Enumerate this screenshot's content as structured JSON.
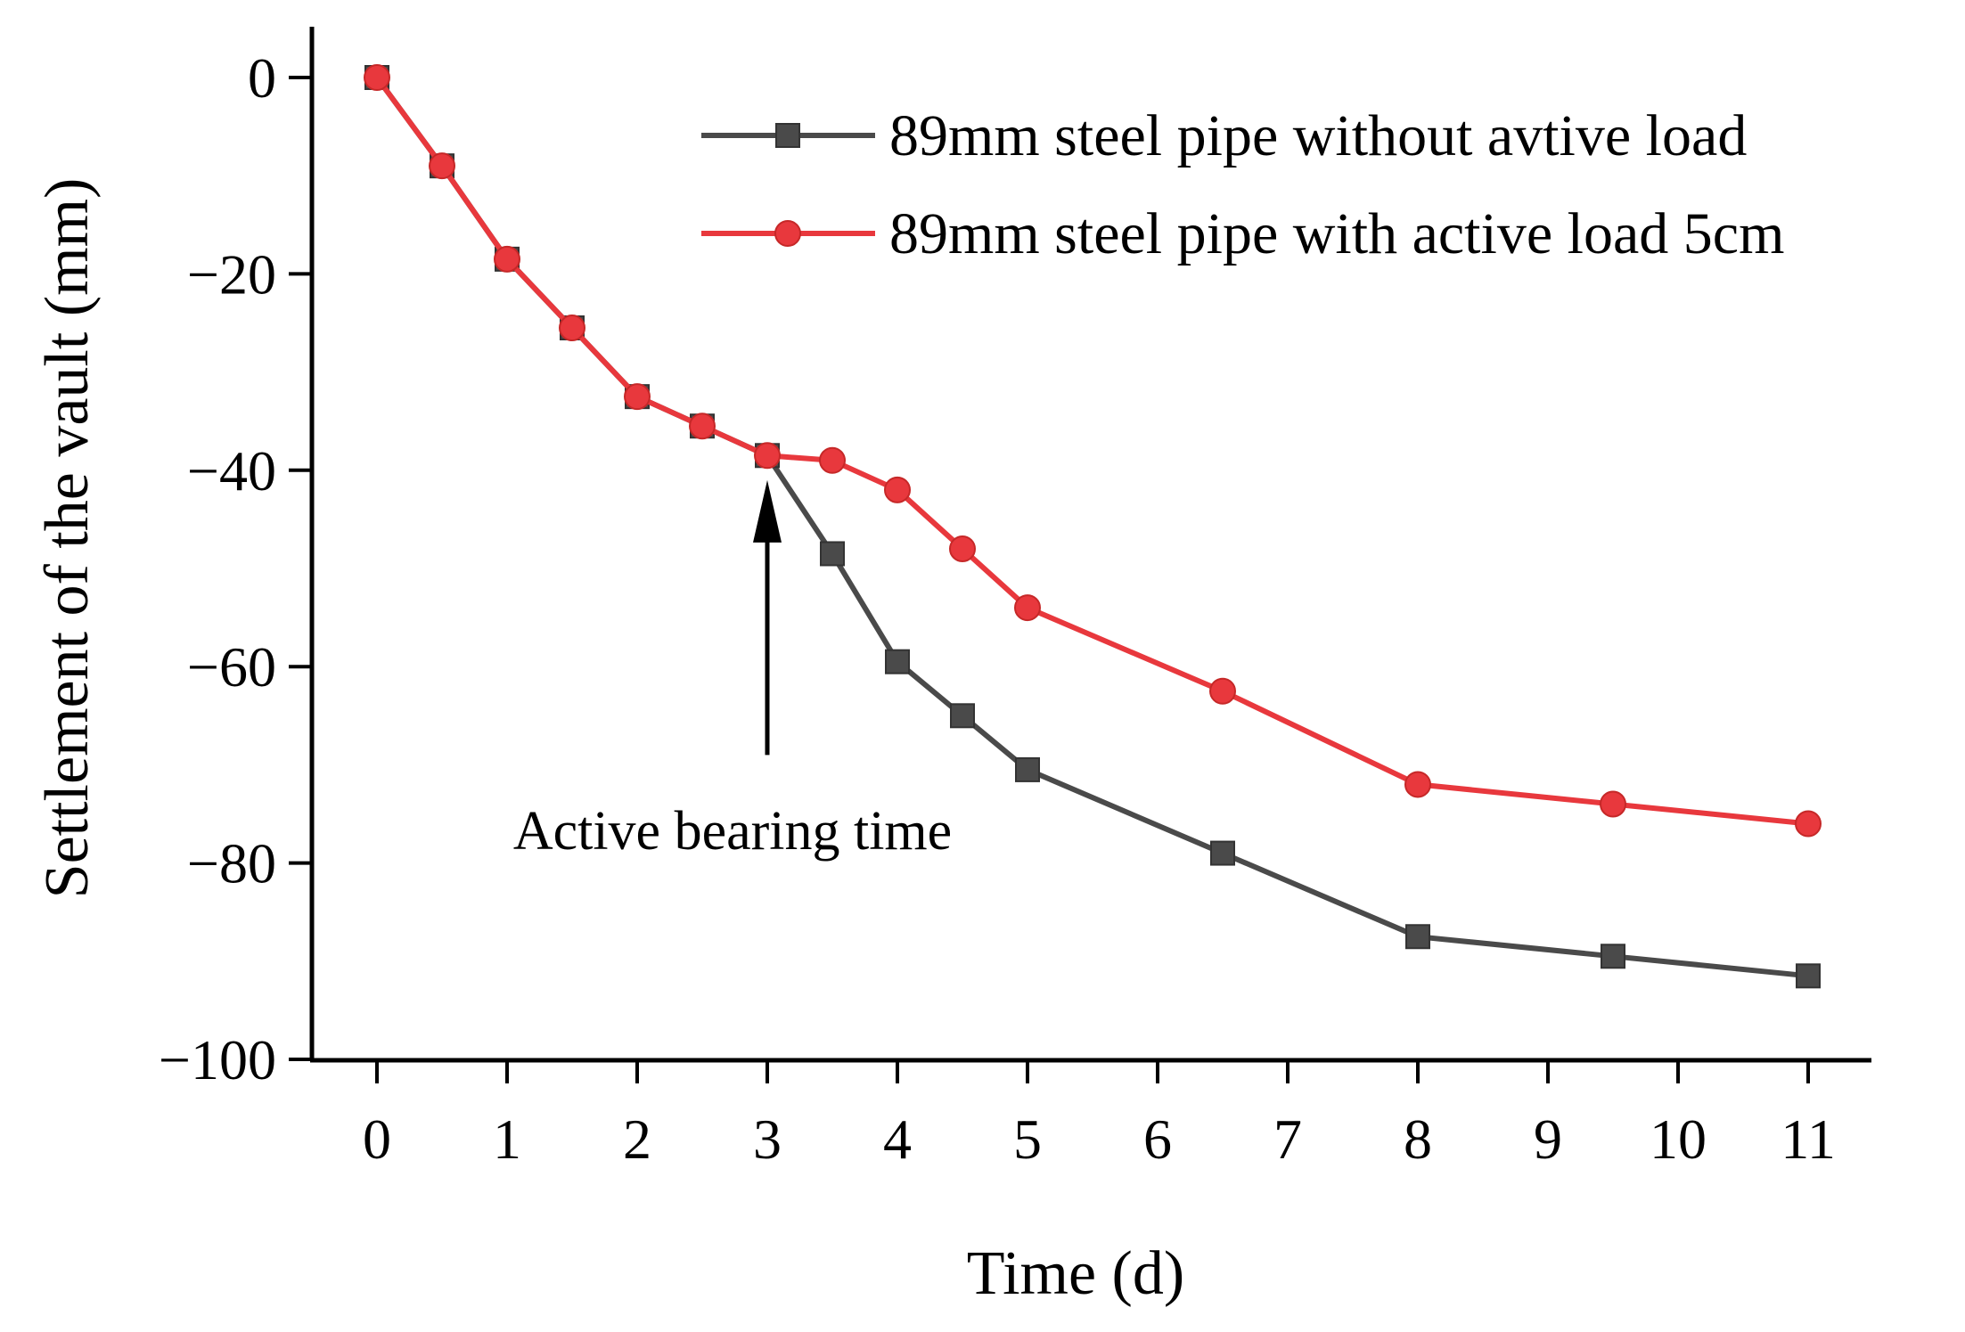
{
  "chart_data": {
    "type": "line",
    "title": "",
    "xlabel": "Time (d)",
    "ylabel": "Settlement of the vault (mm)",
    "xlim": [
      -0.5,
      11.5
    ],
    "ylim": [
      -100,
      5
    ],
    "xticks": [
      0,
      1,
      2,
      3,
      4,
      5,
      6,
      7,
      8,
      9,
      10,
      11
    ],
    "yticks": [
      0,
      -20,
      -40,
      -60,
      -80,
      -100
    ],
    "ytick_labels": [
      "0",
      "−20",
      "−40",
      "−60",
      "−80",
      "−100"
    ],
    "legend_position": "top-right",
    "series": [
      {
        "name": "89mm steel pipe without avtive load",
        "color": "#4a4a4a",
        "marker": "square",
        "x": [
          0,
          0.5,
          1,
          1.5,
          2,
          2.5,
          3,
          3.5,
          4,
          4.5,
          5,
          6.5,
          8,
          9.5,
          11
        ],
        "y": [
          0,
          -9,
          -18.5,
          -25.5,
          -32.5,
          -35.5,
          -38.5,
          -48.5,
          -59.5,
          -65,
          -70.5,
          -79,
          -87.5,
          -89.5,
          -91.5
        ]
      },
      {
        "name": "89mm steel pipe with active load 5cm",
        "color": "#e8383d",
        "marker": "circle",
        "x": [
          0,
          0.5,
          1,
          1.5,
          2,
          2.5,
          3,
          3.5,
          4,
          4.5,
          5,
          6.5,
          8,
          9.5,
          11
        ],
        "y": [
          0,
          -9,
          -18.5,
          -25.5,
          -32.5,
          -35.5,
          -38.5,
          -39,
          -42,
          -48,
          -54,
          -62.5,
          -72,
          -74,
          -76
        ]
      }
    ],
    "annotations": [
      {
        "text": "Active bearing time",
        "arrow_x": 3,
        "arrow_from_y": -69,
        "arrow_to_y": -41
      }
    ]
  }
}
